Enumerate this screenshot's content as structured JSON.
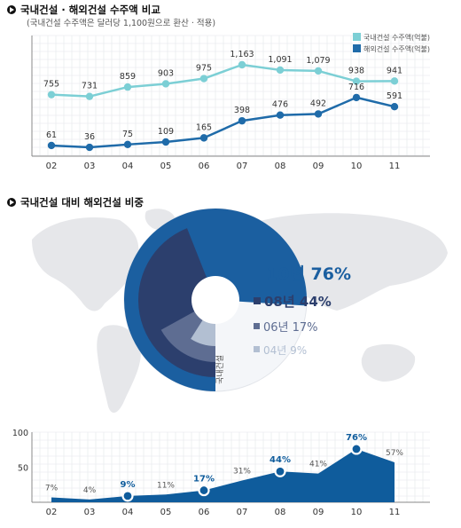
{
  "section1": {
    "title": "국내건설 · 해외건설 수주액 비교",
    "subtitle": "(국내건설 수주액은 달러당 1,100원으로 환산 · 적용)"
  },
  "section2": {
    "title": "국내건설 대비 해외건설 비중",
    "center_label": "국내건설"
  },
  "colors": {
    "domestic": "#7ccfd5",
    "overseas": "#1f6ba9",
    "pie_10": "#1b5fa0",
    "pie_08": "#2c3f6d",
    "pie_06": "#5e6d92",
    "pie_04": "#b2bfd2",
    "map": "#e6e7ea",
    "area": "#0f5c9c"
  },
  "chart_data": [
    {
      "type": "line",
      "title": "국내건설 · 해외건설 수주액 비교",
      "categories": [
        "02",
        "03",
        "04",
        "05",
        "06",
        "07",
        "08",
        "09",
        "10",
        "11"
      ],
      "series": [
        {
          "name": "국내건설 수주액(억불)",
          "values": [
            755,
            731,
            859,
            903,
            975,
            1163,
            1091,
            1079,
            938,
            941
          ],
          "labels": [
            "755",
            "731",
            "859",
            "903",
            "975",
            "1,163",
            "1,091",
            "1,079",
            "938",
            "941"
          ]
        },
        {
          "name": "해외건설 수주액(억불)",
          "values": [
            61,
            36,
            75,
            109,
            165,
            398,
            476,
            492,
            716,
            591
          ],
          "labels": [
            "61",
            "36",
            "75",
            "109",
            "165",
            "398",
            "476",
            "492",
            "716",
            "591"
          ]
        }
      ],
      "grid": true,
      "legend": "top-right"
    },
    {
      "type": "pie",
      "title": "국내건설 대비 해외건설 비중",
      "slices": [
        {
          "year": "10년",
          "value": 76,
          "label": "10년 76%"
        },
        {
          "year": "08년",
          "value": 44,
          "label": "08년 44%"
        },
        {
          "year": "06년",
          "value": 17,
          "label": "06년 17%"
        },
        {
          "year": "04년",
          "value": 9,
          "label": "04년 9%"
        }
      ],
      "center_label": "국내건설"
    },
    {
      "type": "area",
      "categories": [
        "02",
        "03",
        "04",
        "05",
        "06",
        "07",
        "08",
        "09",
        "10",
        "11"
      ],
      "values": [
        7,
        4,
        9,
        11,
        17,
        31,
        44,
        41,
        76,
        57
      ],
      "labels": [
        "7%",
        "4%",
        "9%",
        "11%",
        "17%",
        "31%",
        "44%",
        "41%",
        "76%",
        "57%"
      ],
      "highlighted": [
        "04",
        "06",
        "08",
        "10"
      ],
      "yticks": [
        "100",
        "50"
      ],
      "ylim": [
        0,
        100
      ]
    }
  ]
}
